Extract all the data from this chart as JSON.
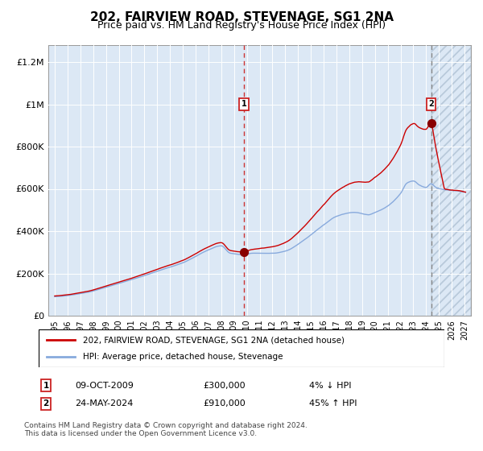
{
  "title": "202, FAIRVIEW ROAD, STEVENAGE, SG1 2NA",
  "subtitle": "Price paid vs. HM Land Registry's House Price Index (HPI)",
  "title_fontsize": 11,
  "subtitle_fontsize": 9,
  "ylim": [
    0,
    1280000
  ],
  "xlim_start": 1994.5,
  "xlim_end": 2027.5,
  "sale1_date": 2009.77,
  "sale1_price": 300000,
  "sale2_date": 2024.39,
  "sale2_price": 910000,
  "legend_label1": "202, FAIRVIEW ROAD, STEVENAGE, SG1 2NA (detached house)",
  "legend_label2": "HPI: Average price, detached house, Stevenage",
  "annotation1_text": "09-OCT-2009",
  "annotation1_price": "£300,000",
  "annotation1_pct": "4% ↓ HPI",
  "annotation2_text": "24-MAY-2024",
  "annotation2_price": "£910,000",
  "annotation2_pct": "45% ↑ HPI",
  "footer": "Contains HM Land Registry data © Crown copyright and database right 2024.\nThis data is licensed under the Open Government Licence v3.0.",
  "hpi_line_color": "#88aadd",
  "price_line_color": "#cc0000",
  "sale_marker_color": "#880000",
  "vline1_color": "#cc3333",
  "vline2_color": "#cc3333",
  "vline2_solid_color": "#888888",
  "ytick_labels": [
    "£0",
    "£200K",
    "£400K",
    "£600K",
    "£800K",
    "£1M",
    "£1.2M"
  ],
  "ytick_values": [
    0,
    200000,
    400000,
    600000,
    800000,
    1000000,
    1200000
  ],
  "xtick_labels": [
    "1995",
    "1996",
    "1997",
    "1998",
    "1999",
    "2000",
    "2001",
    "2002",
    "2003",
    "2004",
    "2005",
    "2006",
    "2007",
    "2008",
    "2009",
    "2010",
    "2011",
    "2012",
    "2013",
    "2014",
    "2015",
    "2016",
    "2017",
    "2018",
    "2019",
    "2020",
    "2021",
    "2022",
    "2023",
    "2024",
    "2025",
    "2026",
    "2027"
  ],
  "xtick_values": [
    1995,
    1996,
    1997,
    1998,
    1999,
    2000,
    2001,
    2002,
    2003,
    2004,
    2005,
    2006,
    2007,
    2008,
    2009,
    2010,
    2011,
    2012,
    2013,
    2014,
    2015,
    2016,
    2017,
    2018,
    2019,
    2020,
    2021,
    2022,
    2023,
    2024,
    2025,
    2026,
    2027
  ]
}
